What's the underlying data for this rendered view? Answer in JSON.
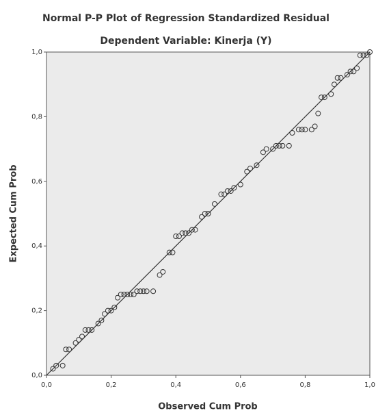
{
  "chart_data": {
    "type": "scatter",
    "title": "Normal P-P Plot of Regression Standardized Residual",
    "subtitle": "Dependent Variable: Kinerja (Y)",
    "x_label": "Observed Cum Prob",
    "y_label": "Expected Cum Prob",
    "marker_color": "#333333",
    "line_color": "#333333",
    "x": [
      0.02,
      0.03,
      0.05,
      0.06,
      0.07,
      0.09,
      0.1,
      0.11,
      0.12,
      0.13,
      0.14,
      0.16,
      0.17,
      0.18,
      0.19,
      0.2,
      0.21,
      0.22,
      0.23,
      0.24,
      0.25,
      0.26,
      0.27,
      0.28,
      0.29,
      0.3,
      0.31,
      0.33,
      0.35,
      0.36,
      0.38,
      0.39,
      0.4,
      0.41,
      0.42,
      0.43,
      0.44,
      0.45,
      0.46,
      0.48,
      0.49,
      0.5,
      0.52,
      0.54,
      0.55,
      0.56,
      0.57,
      0.58,
      0.6,
      0.62,
      0.63,
      0.65,
      0.67,
      0.68,
      0.7,
      0.71,
      0.72,
      0.73,
      0.75,
      0.76,
      0.78,
      0.79,
      0.8,
      0.82,
      0.83,
      0.84,
      0.85,
      0.86,
      0.88,
      0.89,
      0.9,
      0.91,
      0.93,
      0.94,
      0.95,
      0.96,
      0.97,
      0.98,
      0.99,
      1.0
    ],
    "y": [
      0.02,
      0.03,
      0.03,
      0.08,
      0.08,
      0.1,
      0.11,
      0.12,
      0.14,
      0.14,
      0.14,
      0.16,
      0.17,
      0.19,
      0.2,
      0.2,
      0.21,
      0.24,
      0.25,
      0.25,
      0.25,
      0.25,
      0.25,
      0.26,
      0.26,
      0.26,
      0.26,
      0.26,
      0.31,
      0.32,
      0.38,
      0.38,
      0.43,
      0.43,
      0.44,
      0.44,
      0.44,
      0.45,
      0.45,
      0.49,
      0.5,
      0.5,
      0.53,
      0.56,
      0.56,
      0.57,
      0.57,
      0.58,
      0.59,
      0.63,
      0.64,
      0.65,
      0.69,
      0.7,
      0.7,
      0.71,
      0.71,
      0.71,
      0.71,
      0.75,
      0.76,
      0.76,
      0.76,
      0.76,
      0.77,
      0.81,
      0.86,
      0.86,
      0.87,
      0.9,
      0.92,
      0.92,
      0.93,
      0.94,
      0.94,
      0.95,
      0.99,
      0.99,
      0.99,
      1.0
    ],
    "xlim": [
      0,
      1
    ],
    "ylim": [
      0,
      1
    ],
    "xticks": [
      {
        "value": 0,
        "label": "0,0"
      },
      {
        "value": 0.2,
        "label": "0,2"
      },
      {
        "value": 0.4,
        "label": "0,4"
      },
      {
        "value": 0.6,
        "label": "0,6"
      },
      {
        "value": 0.8,
        "label": "0,8"
      },
      {
        "value": 1,
        "label": "1,0"
      }
    ],
    "yticks": [
      {
        "value": 0,
        "label": "0,0"
      },
      {
        "value": 0.2,
        "label": "0,2"
      },
      {
        "value": 0.4,
        "label": "0,4"
      },
      {
        "value": 0.6,
        "label": "0,6"
      },
      {
        "value": 0.8,
        "label": "0,8"
      },
      {
        "value": 1,
        "label": "1,0"
      }
    ]
  }
}
